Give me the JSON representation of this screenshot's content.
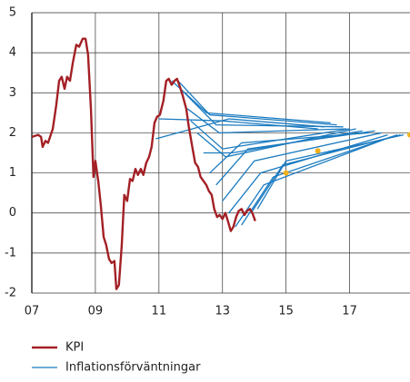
{
  "chart_data": {
    "type": "line",
    "xlim": [
      2007,
      2018.9
    ],
    "ylim": [
      -2,
      5
    ],
    "xticks": [
      {
        "value": 2007,
        "label": "07"
      },
      {
        "value": 2009,
        "label": "09"
      },
      {
        "value": 2011,
        "label": "11"
      },
      {
        "value": 2013,
        "label": "13"
      },
      {
        "value": 2015,
        "label": "15"
      },
      {
        "value": 2017,
        "label": "17"
      }
    ],
    "yticks": [
      -2,
      -1,
      0,
      1,
      2,
      3,
      4,
      5
    ],
    "grid": true,
    "series": [
      {
        "name": "KPI",
        "color": "#a32025",
        "x": [
          2007.0,
          2007.2,
          2007.29,
          2007.34,
          2007.43,
          2007.51,
          2007.66,
          2007.77,
          2007.86,
          2007.94,
          2008.03,
          2008.11,
          2008.2,
          2008.29,
          2008.4,
          2008.49,
          2008.6,
          2008.69,
          2008.77,
          2008.86,
          2008.94,
          2009.0,
          2009.09,
          2009.17,
          2009.26,
          2009.34,
          2009.43,
          2009.51,
          2009.6,
          2009.66,
          2009.74,
          2009.83,
          2009.91,
          2010.0,
          2010.09,
          2010.17,
          2010.26,
          2010.34,
          2010.43,
          2010.51,
          2010.6,
          2010.69,
          2010.77,
          2010.86,
          2010.94,
          2011.03,
          2011.14,
          2011.23,
          2011.31,
          2011.4,
          2011.49,
          2011.57,
          2011.66,
          2011.74,
          2011.86,
          2011.94,
          2012.06,
          2012.14,
          2012.23,
          2012.31,
          2012.4,
          2012.49,
          2012.57,
          2012.66,
          2012.74,
          2012.83,
          2012.91,
          2013.0,
          2013.09,
          2013.17,
          2013.26,
          2013.34,
          2013.43,
          2013.51,
          2013.6,
          2013.69,
          2013.77,
          2013.86,
          2013.94,
          2014.03
        ],
        "values": [
          1.9,
          1.95,
          1.9,
          1.65,
          1.8,
          1.75,
          2.1,
          2.7,
          3.3,
          3.4,
          3.1,
          3.4,
          3.3,
          3.75,
          4.2,
          4.15,
          4.35,
          4.35,
          3.95,
          2.6,
          0.9,
          1.3,
          0.8,
          0.2,
          -0.6,
          -0.8,
          -1.15,
          -1.25,
          -1.2,
          -1.9,
          -1.8,
          -0.8,
          0.45,
          0.3,
          0.85,
          0.8,
          1.1,
          0.95,
          1.1,
          0.95,
          1.25,
          1.4,
          1.65,
          2.25,
          2.4,
          2.45,
          2.8,
          3.3,
          3.35,
          3.2,
          3.3,
          3.35,
          3.15,
          2.95,
          2.6,
          2.15,
          1.6,
          1.25,
          1.15,
          0.9,
          0.8,
          0.7,
          0.55,
          0.45,
          0.1,
          -0.1,
          -0.05,
          -0.15,
          0,
          -0.2,
          -0.45,
          -0.35,
          -0.1,
          0.05,
          0.1,
          -0.05,
          0.05,
          0.1,
          0,
          -0.2
        ]
      },
      {
        "name": "Inflationsförväntningar",
        "color": "#1b7bc0",
        "lines": [
          {
            "x": [
              2011.0,
              2013.0,
              2016.0
            ],
            "values": [
              2.35,
              2.3,
              2.1
            ]
          },
          {
            "x": [
              2010.9,
              2013.2,
              2016.2
            ],
            "values": [
              1.85,
              2.35,
              2.15
            ]
          },
          {
            "x": [
              2011.4,
              2012.5,
              2016.4
            ],
            "values": [
              3.3,
              2.5,
              2.25
            ]
          },
          {
            "x": [
              2011.6,
              2012.6,
              2016.6
            ],
            "values": [
              3.3,
              2.45,
              2.2
            ]
          },
          {
            "x": [
              2011.8,
              2012.8,
              2016.8
            ],
            "values": [
              3.0,
              2.2,
              2.15
            ]
          },
          {
            "x": [
              2011.9,
              2012.9,
              2016.9
            ],
            "values": [
              2.6,
              2.0,
              2.1
            ]
          },
          {
            "x": [
              2012.0,
              2013.0,
              2017.0
            ],
            "values": [
              2.3,
              1.6,
              2.1
            ]
          },
          {
            "x": [
              2012.2,
              2013.1,
              2017.2
            ],
            "values": [
              2.0,
              1.4,
              2.1
            ]
          },
          {
            "x": [
              2012.4,
              2013.3,
              2017.4
            ],
            "values": [
              1.5,
              1.5,
              2.05
            ]
          },
          {
            "x": [
              2012.6,
              2013.6,
              2017.6
            ],
            "values": [
              1.0,
              1.75,
              2.0
            ]
          },
          {
            "x": [
              2012.8,
              2013.8,
              2017.8
            ],
            "values": [
              0.7,
              1.6,
              2.05
            ]
          },
          {
            "x": [
              2013.0,
              2014.0,
              2018.0
            ],
            "values": [
              0.3,
              1.3,
              2.0
            ]
          },
          {
            "x": [
              2013.2,
              2014.2,
              2018.2
            ],
            "values": [
              0.0,
              1.0,
              1.95
            ]
          },
          {
            "x": [
              2013.4,
              2014.3,
              2018.3
            ],
            "values": [
              -0.35,
              0.7,
              1.9
            ]
          },
          {
            "x": [
              2013.6,
              2014.6,
              2018.5
            ],
            "values": [
              -0.3,
              0.9,
              1.95
            ]
          },
          {
            "x": [
              2013.9,
              2014.9,
              2018.6
            ],
            "values": [
              0.0,
              1.2,
              1.95
            ]
          },
          {
            "x": [
              2014.1,
              2015.0,
              2018.7
            ],
            "values": [
              0.1,
              1.3,
              1.95
            ]
          }
        ]
      }
    ],
    "markers": {
      "color": "#f2b21b",
      "x": [
        2015,
        2016,
        2018.9
      ],
      "values": [
        1.0,
        1.55,
        1.95
      ]
    }
  }
}
